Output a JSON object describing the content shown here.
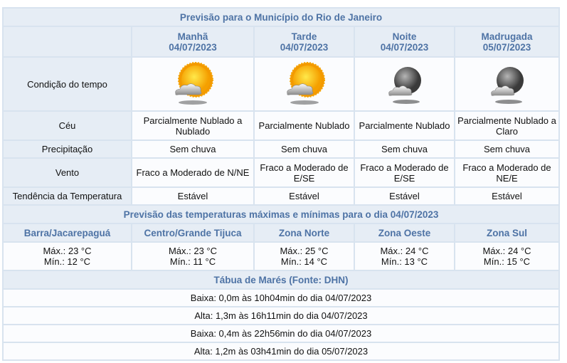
{
  "forecast": {
    "title": "Previsão para o Município do Rio de Janeiro",
    "periods": [
      {
        "name": "Manhã",
        "date": "04/07/2023",
        "icon": "sun-with-cloud-icon",
        "ceu": "Parcialmente Nublado a Nublado",
        "precipitacao": "Sem chuva",
        "vento": "Fraco a Moderado de N/NE",
        "tendencia": "Estável"
      },
      {
        "name": "Tarde",
        "date": "04/07/2023",
        "icon": "sun-with-cloud-icon",
        "ceu": "Parcialmente Nublado",
        "precipitacao": "Sem chuva",
        "vento": "Fraco a Moderado de E/SE",
        "tendencia": "Estável"
      },
      {
        "name": "Noite",
        "date": "04/07/2023",
        "icon": "moon-with-cloud-icon",
        "ceu": "Parcialmente Nublado",
        "precipitacao": "Sem chuva",
        "vento": "Fraco a Moderado de E/SE",
        "tendencia": "Estável"
      },
      {
        "name": "Madrugada",
        "date": "05/07/2023",
        "icon": "moon-with-cloud-icon",
        "ceu": "Parcialmente Nublado a Claro",
        "precipitacao": "Sem chuva",
        "vento": "Fraco a Moderado de NE/E",
        "tendencia": "Estável"
      }
    ],
    "row_labels": {
      "condicao": "Condição do tempo",
      "ceu": "Céu",
      "precipitacao": "Precipitação",
      "vento": "Vento",
      "tendencia": "Tendência da Temperatura"
    }
  },
  "temperatures": {
    "title": "Previsão das temperaturas máximas e mínimas para o dia 04/07/2023",
    "zones": [
      {
        "name": "Barra/Jacarepaguá",
        "max": "Máx.: 23 °C",
        "min": "Mín.: 12 °C"
      },
      {
        "name": "Centro/Grande Tijuca",
        "max": "Máx.: 23 °C",
        "min": "Mín.: 11 °C"
      },
      {
        "name": "Zona Norte",
        "max": "Máx.: 25 °C",
        "min": "Mín.: 14 °C"
      },
      {
        "name": "Zona Oeste",
        "max": "Máx.: 24 °C",
        "min": "Mín.: 13 °C"
      },
      {
        "name": "Zona Sul",
        "max": "Máx.: 24 °C",
        "min": "Mín.: 15 °C"
      }
    ]
  },
  "tides": {
    "title": "Tábua de Marés (Fonte: DHN)",
    "rows": [
      "Baixa: 0,0m às 10h04min do dia 04/07/2023",
      "Alta: 1,3m às 16h11min do dia 04/07/2023",
      "Baixa: 0,4m às 22h56min do dia 04/07/2023",
      "Alta: 1,2m às 03h41min do dia 05/07/2023"
    ]
  },
  "colors": {
    "header_bg": "#e6edf5",
    "header_text": "#4e73a5",
    "border": "#d8e3ef"
  }
}
